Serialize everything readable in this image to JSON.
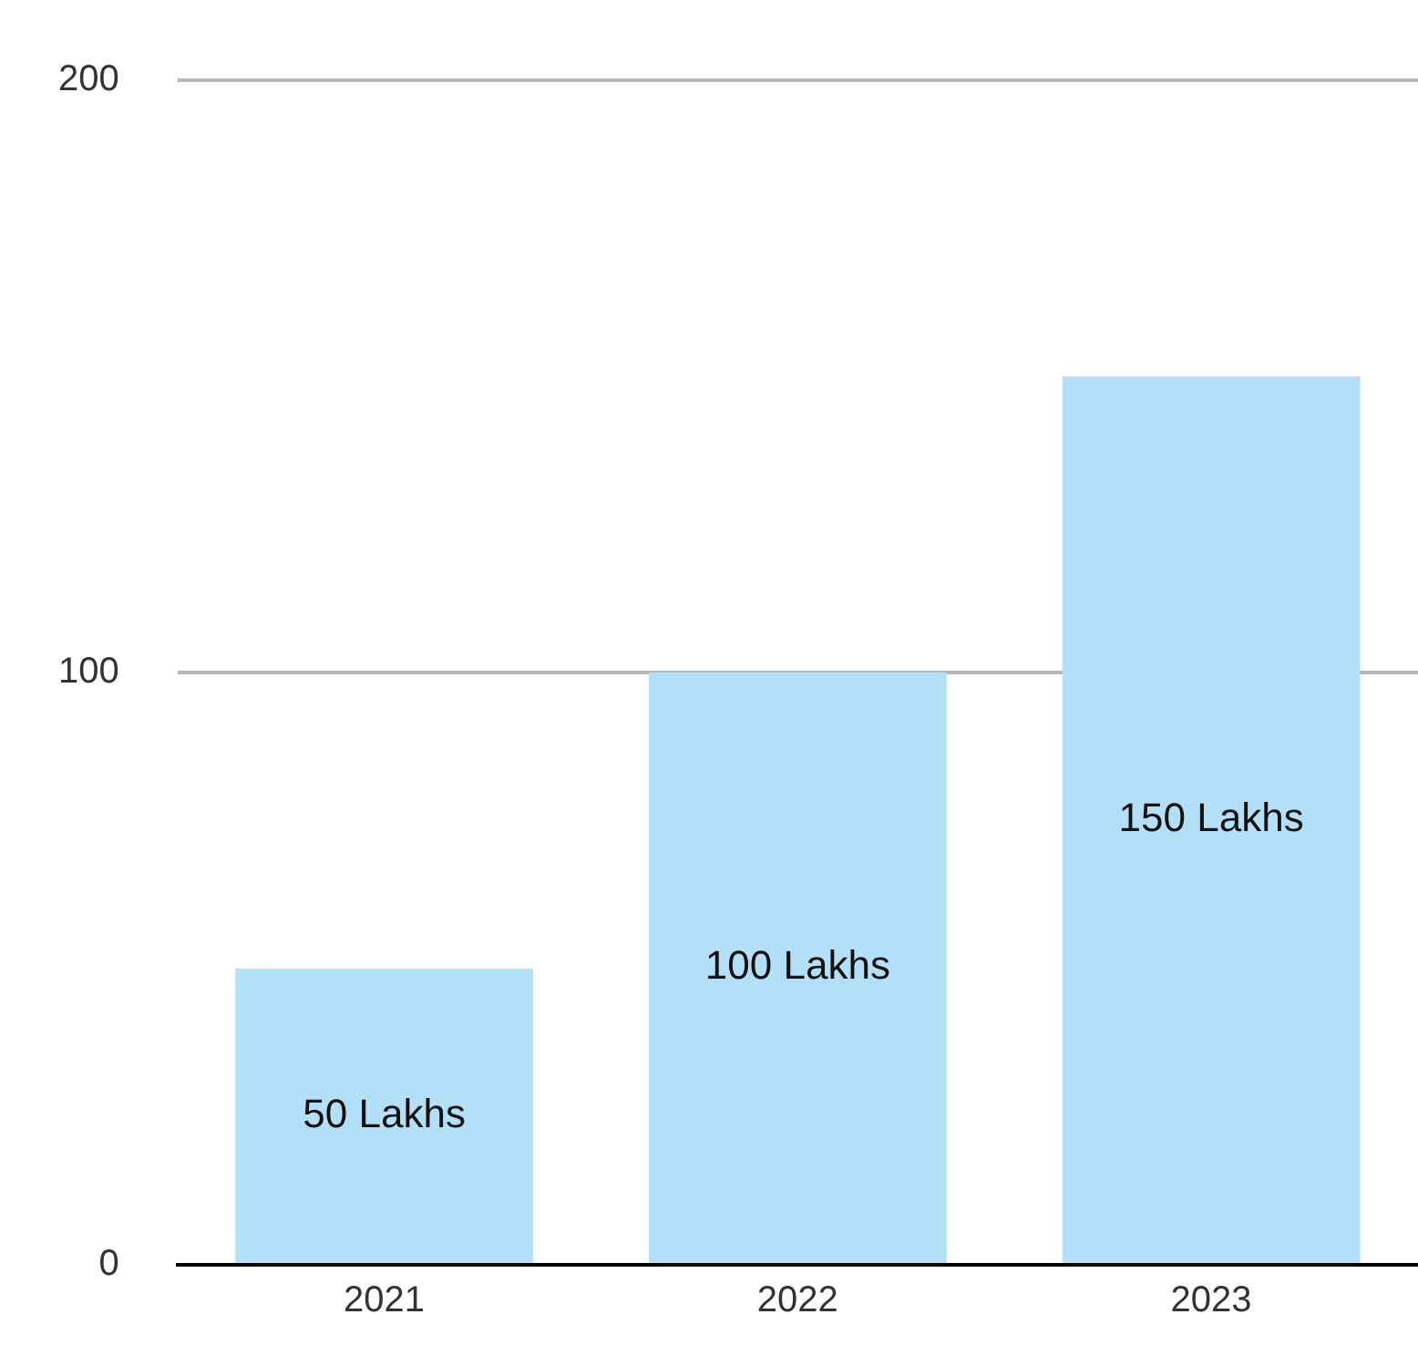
{
  "chart_data": {
    "type": "bar",
    "categories": [
      "2021",
      "2022",
      "2023"
    ],
    "values": [
      50,
      100,
      150
    ],
    "color": "#b3e0f8",
    "value_labels": [
      "50 Lakhs",
      "100 Lakhs",
      "150 Lakhs"
    ],
    "ylim": [
      0,
      200
    ],
    "yticks": [
      0,
      100,
      200
    ],
    "grid": "y",
    "legend": false
  }
}
